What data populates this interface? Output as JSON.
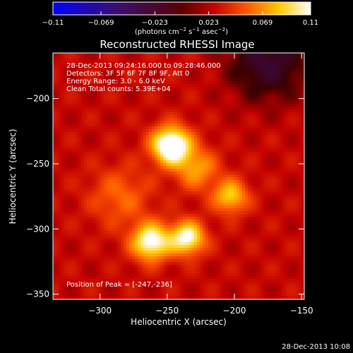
{
  "chart_data": {
    "type": "heatmap",
    "title": "Reconstructed RHESSI Image",
    "xlabel": "Heliocentric X (arcsec)",
    "ylabel": "Heliocentric Y (arcsec)",
    "xlim": [
      -335,
      -148
    ],
    "ylim": [
      -354,
      -165
    ],
    "xticks": [
      -300,
      -250,
      -200,
      -150
    ],
    "yticks": [
      -350,
      -300,
      -250,
      -200
    ],
    "xtick_labels": [
      "−300",
      "−250",
      "−200",
      "−150"
    ],
    "ytick_labels": [
      "−350",
      "−300",
      "−250",
      "−200"
    ],
    "colorbar": {
      "min": -0.11,
      "max": 0.11,
      "tick_values": [
        -0.11,
        -0.069,
        -0.023,
        0.023,
        0.069,
        0.11
      ],
      "tick_labels": [
        "−0.11",
        "−0.069",
        "−0.023",
        "0.023",
        "0.069",
        "0.11"
      ],
      "unit_prefix": "(photons cm",
      "unit_exp1": "−2",
      "unit_mid": " s",
      "unit_exp2": "−1",
      "unit_mid2": " asec",
      "unit_suffix": ")",
      "unit_exp3": "−2",
      "colormap": "blue-purple-red-yellow-white"
    },
    "annotations": [
      "28-Dec-2013 09:24:16.000 to 09:28:46.000",
      "Detectors: 3F 5F 6F 7F 8F 9F, Att 0",
      "Energy Range: 3.0 - 6.0 keV",
      "Clean    Total counts: 5.39E+04"
    ],
    "peak_label": "Position of Peak = [-247,-236]",
    "peak_position": [
      -247,
      -236
    ],
    "sources": [
      {
        "x": -247,
        "y": -236,
        "sigma": 10,
        "amp": 0.11
      },
      {
        "x": -262,
        "y": -310,
        "sigma": 10,
        "amp": 0.088
      },
      {
        "x": -235,
        "y": -307,
        "sigma": 9,
        "amp": 0.084
      },
      {
        "x": -203,
        "y": -275,
        "sigma": 9,
        "amp": 0.06
      },
      {
        "x": -228,
        "y": -254,
        "sigma": 11,
        "amp": 0.045
      },
      {
        "x": -285,
        "y": -275,
        "sigma": 16,
        "amp": 0.03
      }
    ],
    "background_level": 0.028,
    "negative_region": {
      "x": -175,
      "y": -172,
      "sigma": 20,
      "amp": -0.05
    }
  },
  "footer_timestamp": "28-Dec-2013 10:08"
}
